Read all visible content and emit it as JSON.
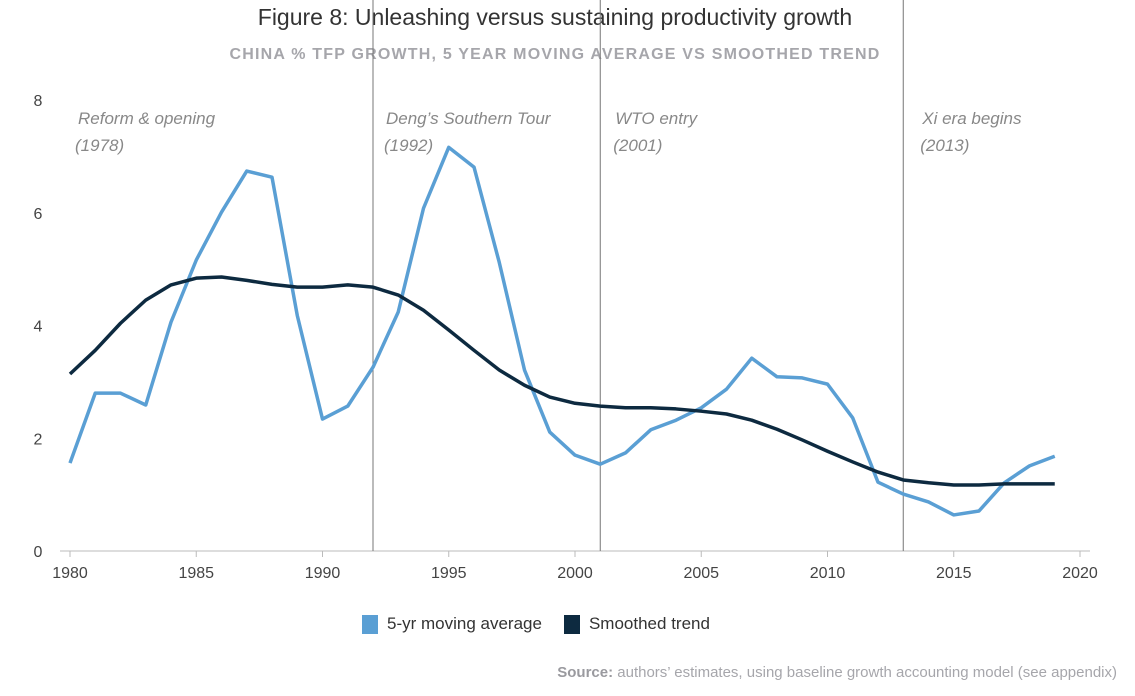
{
  "chart_data": {
    "type": "line",
    "title": "Figure 8: Unleashing versus sustaining productivity growth",
    "subtitle": "CHINA % TFP GROWTH, 5 YEAR MOVING AVERAGE VS SMOOTHED TREND",
    "xlabel": "",
    "ylabel": "",
    "xlim": [
      1980,
      2020
    ],
    "ylim": [
      0,
      8
    ],
    "x_ticks": [
      "1980",
      "1985",
      "1990",
      "1995",
      "2000",
      "2005",
      "2010",
      "2015",
      "2020"
    ],
    "y_ticks": [
      "0",
      "2",
      "4",
      "6",
      "8"
    ],
    "grid": false,
    "legend_position": "bottom",
    "x": [
      1980,
      1981,
      1982,
      1983,
      1984,
      1985,
      1986,
      1987,
      1988,
      1989,
      1990,
      1991,
      1992,
      1993,
      1994,
      1995,
      1996,
      1997,
      1998,
      1999,
      2000,
      2001,
      2002,
      2003,
      2004,
      2005,
      2006,
      2007,
      2008,
      2009,
      2010,
      2011,
      2012,
      2013,
      2014,
      2015,
      2016,
      2017,
      2018,
      2019
    ],
    "series": [
      {
        "name": "5-yr moving average",
        "color": "#5a9fd4",
        "values": [
          1.56,
          2.8,
          2.8,
          2.59,
          4.06,
          5.16,
          6.01,
          6.74,
          6.63,
          4.18,
          2.34,
          2.57,
          3.26,
          4.24,
          6.08,
          7.16,
          6.81,
          5.12,
          3.21,
          2.11,
          1.7,
          1.54,
          1.74,
          2.15,
          2.32,
          2.54,
          2.87,
          3.42,
          3.09,
          3.07,
          2.96,
          2.36,
          1.22,
          1.01,
          0.87,
          0.64,
          0.71,
          1.21,
          1.51,
          1.68
        ]
      },
      {
        "name": "Smoothed trend",
        "color": "#0d2a40",
        "values": [
          3.14,
          3.56,
          4.04,
          4.45,
          4.72,
          4.84,
          4.86,
          4.8,
          4.73,
          4.68,
          4.68,
          4.72,
          4.68,
          4.54,
          4.27,
          3.92,
          3.56,
          3.21,
          2.94,
          2.73,
          2.62,
          2.57,
          2.54,
          2.54,
          2.52,
          2.48,
          2.43,
          2.32,
          2.16,
          1.97,
          1.77,
          1.58,
          1.4,
          1.26,
          1.21,
          1.17,
          1.17,
          1.19,
          1.19,
          1.19
        ]
      }
    ],
    "annotations": [
      {
        "year": 1978,
        "line1": "Reform & opening",
        "line2": "(1978)"
      },
      {
        "year": 1992,
        "line1": "Deng’s Southern Tour",
        "line2": "(1992)"
      },
      {
        "year": 2001,
        "line1": "WTO entry",
        "line2": "(2001)"
      },
      {
        "year": 2013,
        "line1": "Xi era begins",
        "line2": "(2013)"
      }
    ],
    "source_label": "Source:",
    "source_text": "authors’ estimates, using baseline growth accounting model (see appendix)"
  }
}
